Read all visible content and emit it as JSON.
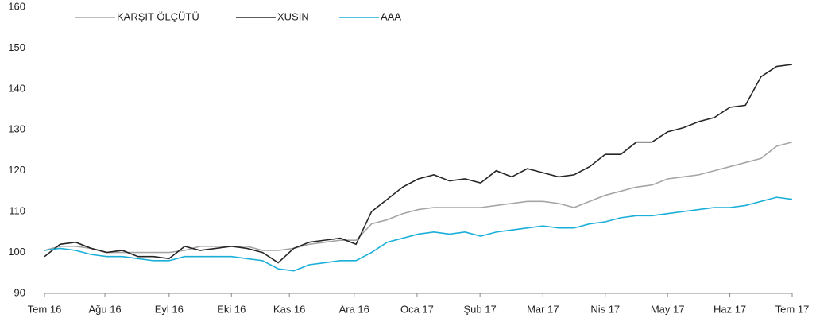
{
  "chart_data": {
    "type": "line",
    "x": [
      0,
      0.25,
      0.5,
      0.75,
      1,
      1.25,
      1.5,
      1.75,
      2,
      2.25,
      2.5,
      2.75,
      3,
      3.25,
      3.5,
      3.75,
      4,
      4.25,
      4.5,
      4.75,
      5,
      5.25,
      5.5,
      5.75,
      6,
      6.25,
      6.5,
      6.75,
      7,
      7.25,
      7.5,
      7.75,
      8,
      8.25,
      8.5,
      8.75,
      9,
      9.25,
      9.5,
      9.75,
      10,
      10.25,
      10.5,
      10.75,
      11,
      11.25,
      11.5,
      11.75,
      12
    ],
    "series": [
      {
        "name": "KARŞIT ÖLÇÜTÜ",
        "color": "#a6a6a6",
        "values": [
          100.5,
          101.5,
          101.5,
          101,
          100,
          100,
          100,
          100,
          100,
          100.5,
          101.5,
          101.5,
          101.5,
          101.5,
          100.5,
          100.5,
          101,
          102,
          102.5,
          103,
          103,
          107,
          108,
          109.5,
          110.5,
          111,
          111,
          111,
          111,
          111.5,
          112,
          112.5,
          112.5,
          112,
          111,
          112.5,
          114,
          115,
          116,
          116.5,
          118,
          118.5,
          119,
          120,
          121,
          122,
          123,
          126,
          127
        ]
      },
      {
        "name": "XUSIN",
        "color": "#262626",
        "values": [
          99,
          102,
          102.5,
          101,
          100,
          100.5,
          99,
          99,
          98.5,
          101.5,
          100.5,
          101,
          101.5,
          101,
          100,
          97.5,
          101,
          102.5,
          103,
          103.5,
          102,
          110,
          113,
          116,
          118,
          119,
          117.5,
          118,
          117,
          120,
          118.5,
          120.5,
          119.5,
          118.5,
          119,
          121,
          124,
          124,
          127,
          127,
          129.5,
          130.5,
          132,
          133,
          135.5,
          136,
          143,
          145.5,
          146
        ]
      },
      {
        "name": "AAA",
        "color": "#1aafd9",
        "values": [
          100.5,
          101,
          100.5,
          99.5,
          99,
          99,
          98.5,
          98,
          98,
          99,
          99,
          99,
          99,
          98.5,
          98,
          96,
          95.5,
          97,
          97.5,
          98,
          98,
          100,
          102.5,
          103.5,
          104.5,
          105,
          104.5,
          105,
          104,
          105,
          105.5,
          106,
          106.5,
          106,
          106,
          107,
          107.5,
          108.5,
          109,
          109,
          109.5,
          110,
          110.5,
          111,
          111,
          111.5,
          112.5,
          113.5,
          113
        ]
      }
    ],
    "xlim": [
      0,
      12
    ],
    "xticks": [
      {
        "value": 0,
        "label": "Tem 16"
      },
      {
        "value": 0.97,
        "label": "Ağu 16"
      },
      {
        "value": 2,
        "label": "Eyl 16"
      },
      {
        "value": 3,
        "label": "Eki 16"
      },
      {
        "value": 3.93,
        "label": "Kas 16"
      },
      {
        "value": 4.97,
        "label": "Ara 16"
      },
      {
        "value": 5.98,
        "label": "Oca 17"
      },
      {
        "value": 6.99,
        "label": "Şub 17"
      },
      {
        "value": 8,
        "label": "Mar 17"
      },
      {
        "value": 9,
        "label": "Nis 17"
      },
      {
        "value": 10,
        "label": "May 17"
      },
      {
        "value": 11,
        "label": "Haz 17"
      },
      {
        "value": 12,
        "label": "Tem 17"
      }
    ],
    "ylim": [
      90,
      160
    ],
    "yticks": [
      90,
      100,
      110,
      120,
      130,
      140,
      150,
      160
    ],
    "grid": false,
    "legend": "top"
  }
}
